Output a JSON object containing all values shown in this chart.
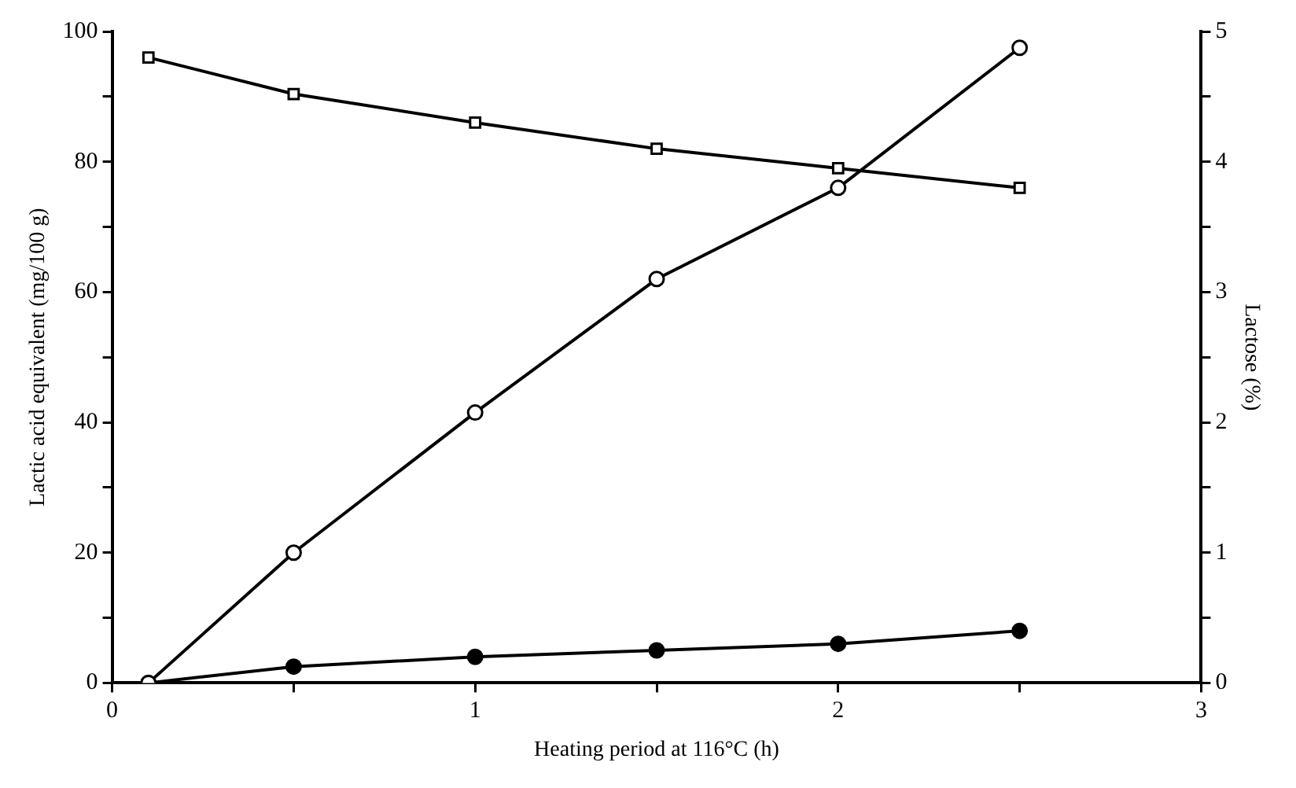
{
  "chart_data": {
    "type": "line",
    "xlabel": "Heating period at 116°C (h)",
    "ylabel": "Lactic acid equivalent (mg/100 g)",
    "y2label": "Lactose (%)",
    "series": [
      {
        "x": [
          0.1,
          0.5,
          1,
          1.5,
          2,
          2.5
        ],
        "values": [
          0,
          20,
          41.5,
          62,
          76,
          97.5
        ],
        "color": "#ffffff",
        "marker": "circle"
      },
      {
        "x": [
          0.1,
          0.5,
          1,
          1.5,
          2,
          2.5
        ],
        "values": [
          0,
          2.5,
          4,
          5,
          6,
          8
        ],
        "color": "#000000",
        "marker": "circle"
      },
      {
        "x": [
          0.1,
          0.5,
          1,
          1.5,
          2,
          2.5
        ],
        "values": [
          4.8,
          4.52,
          4.3,
          4.1,
          3.95,
          3.8
        ],
        "color": "#ffffff",
        "marker": "square",
        "axis": "y2"
      }
    ],
    "xlim": [
      0,
      3
    ],
    "xticks": [
      0,
      {
        "value": 0.5,
        "label": null
      },
      1,
      {
        "value": 1.5,
        "label": null
      },
      2,
      {
        "value": 2.5,
        "label": null
      },
      3
    ],
    "ylim": [
      0,
      100
    ],
    "yticks": [
      0,
      {
        "value": 10,
        "label": null
      },
      20,
      {
        "value": 30,
        "label": null
      },
      40,
      {
        "value": 50,
        "label": null
      },
      60,
      {
        "value": 70,
        "label": null
      },
      80,
      {
        "value": 90,
        "label": null
      },
      100
    ],
    "y2lim": [
      0,
      5
    ],
    "y2ticks": [
      0,
      {
        "value": 0.5,
        "label": null
      },
      1,
      {
        "value": 1.5,
        "label": null
      },
      2,
      {
        "value": 2.5,
        "label": null
      },
      3,
      {
        "value": 3.5,
        "label": null
      },
      4,
      {
        "value": 4.5,
        "label": null
      },
      5
    ],
    "grid": false,
    "legend": false,
    "line_style": "solid"
  }
}
